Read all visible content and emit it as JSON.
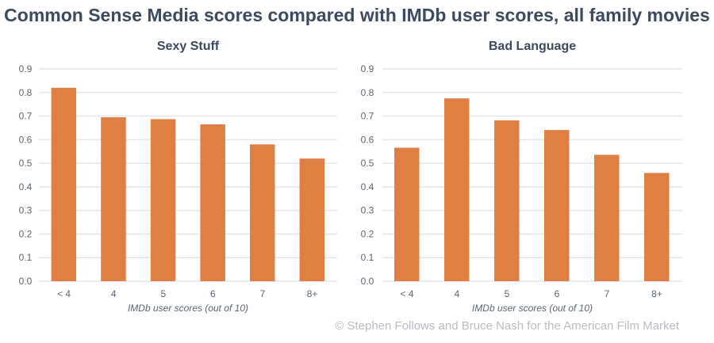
{
  "title": "Common Sense Media scores compared with IMDb user scores, all family movies",
  "credit": "© Stephen Follows and Bruce Nash for the American Film Market",
  "colors": {
    "bar": "#e07f43",
    "grid": "#e3e6ea",
    "text": "#5b6573",
    "title": "#3b4a5e"
  },
  "chart_data": [
    {
      "type": "bar",
      "title": "Sexy Stuff",
      "xlabel": "IMDb user scores (out of 10)",
      "ylabel": "",
      "ylim": [
        0,
        0.9
      ],
      "yticks": [
        "0.0",
        "0.1",
        "0.2",
        "0.3",
        "0.4",
        "0.5",
        "0.6",
        "0.7",
        "0.8",
        "0.9"
      ],
      "grid": true,
      "categories": [
        "< 4",
        "4",
        "5",
        "6",
        "7",
        "8+"
      ],
      "values": [
        0.82,
        0.695,
        0.687,
        0.665,
        0.58,
        0.52
      ]
    },
    {
      "type": "bar",
      "title": "Bad Language",
      "xlabel": "IMDb user scores (out of 10)",
      "ylabel": "",
      "ylim": [
        0,
        0.9
      ],
      "yticks": [
        "0.0",
        "0.1",
        "0.2",
        "0.3",
        "0.4",
        "0.5",
        "0.6",
        "0.7",
        "0.8",
        "0.9"
      ],
      "grid": true,
      "categories": [
        "< 4",
        "4",
        "5",
        "6",
        "7",
        "8+"
      ],
      "values": [
        0.566,
        0.775,
        0.682,
        0.641,
        0.536,
        0.459
      ]
    }
  ]
}
